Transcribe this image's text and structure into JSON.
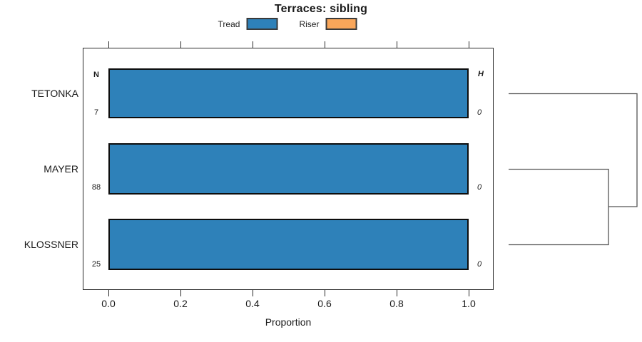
{
  "title": "Terraces: sibling",
  "legend": {
    "items": [
      {
        "label": "Tread",
        "color": "#2e81b9"
      },
      {
        "label": "Riser",
        "color": "#f9a65a"
      }
    ]
  },
  "axis": {
    "xlabel": "Proportion",
    "ticks": [
      "0.0",
      "0.2",
      "0.4",
      "0.6",
      "0.8",
      "1.0"
    ]
  },
  "table": {
    "n_header": "N",
    "h_header": "H"
  },
  "rows": [
    {
      "category": "TETONKA",
      "n": "7",
      "h": "0",
      "tread": 1.0,
      "riser": 0.0
    },
    {
      "category": "MAYER",
      "n": "88",
      "h": "0",
      "tread": 1.0,
      "riser": 0.0
    },
    {
      "category": "KLOSSNER",
      "n": "25",
      "h": "0",
      "tread": 1.0,
      "riser": 0.0
    }
  ],
  "chart_data": {
    "type": "bar",
    "orientation": "horizontal",
    "title": "Terraces: sibling",
    "categories": [
      "TETONKA",
      "MAYER",
      "KLOSSNER"
    ],
    "series": [
      {
        "name": "Tread",
        "color": "#2e81b9",
        "values": [
          1.0,
          1.0,
          1.0
        ]
      },
      {
        "name": "Riser",
        "color": "#f9a65a",
        "values": [
          0.0,
          0.0,
          0.0
        ]
      }
    ],
    "n_values": [
      7,
      88,
      25
    ],
    "h_values": [
      0,
      0,
      0
    ],
    "xlabel": "Proportion",
    "xlim": [
      0.0,
      1.0
    ],
    "xticks": [
      0.0,
      0.2,
      0.4,
      0.6,
      0.8,
      1.0
    ],
    "grid": false,
    "legend_position": "top-center",
    "dendrogram": {
      "leaves": [
        "TETONKA",
        "MAYER",
        "KLOSSNER"
      ],
      "merges": [
        {
          "step": 1,
          "members": [
            "MAYER",
            "KLOSSNER"
          ]
        },
        {
          "step": 2,
          "members": [
            [
              "MAYER",
              "KLOSSNER"
            ],
            "TETONKA"
          ]
        }
      ]
    }
  }
}
